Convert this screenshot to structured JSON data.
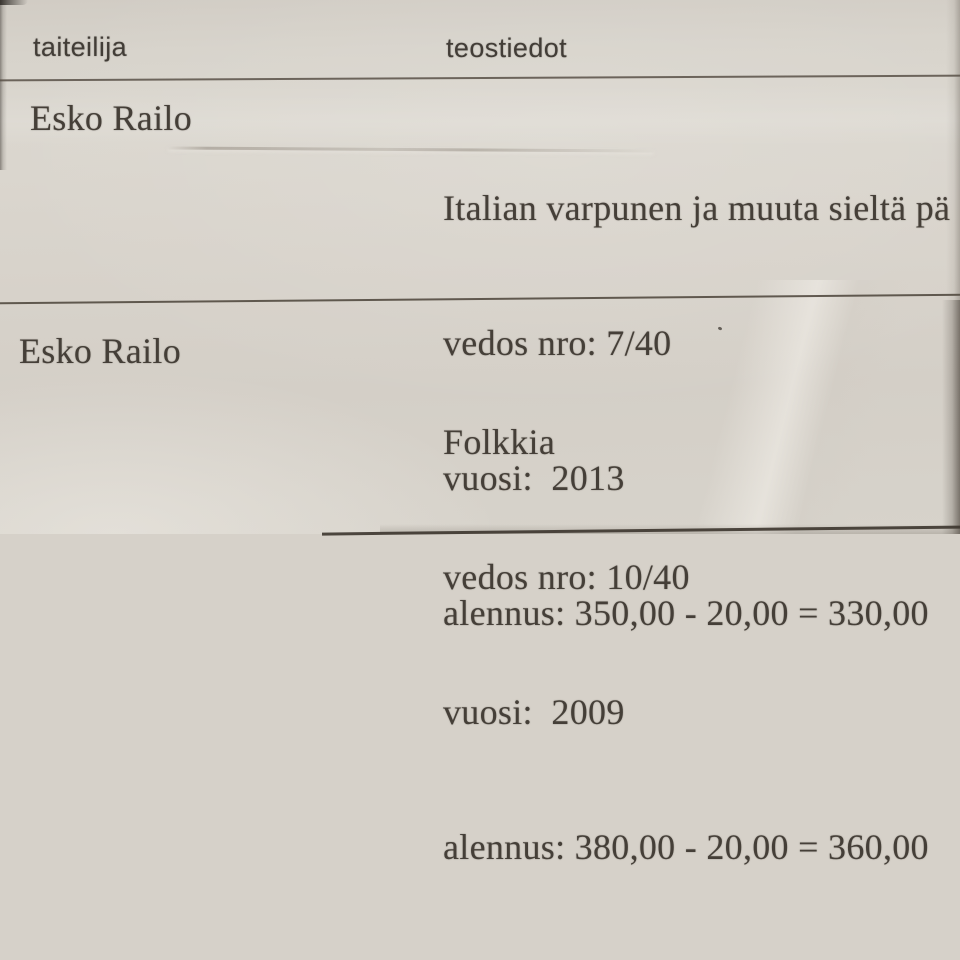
{
  "document": {
    "header": {
      "artist_col": "taiteilija",
      "details_col": "teostiedot"
    },
    "entries": [
      {
        "artist": "Esko Railo",
        "details": [
          "Italian varpunen ja muuta sieltä pä",
          "vedos nro: 7/40",
          "vuosi:  2013",
          "alennus: 350,00 - 20,00 = 330,00"
        ]
      },
      {
        "artist": "Esko Railo",
        "details": [
          "Folkkia",
          "vedos nro: 10/40",
          "vuosi:  2009",
          "alennus: 380,00 - 20,00 = 360,00"
        ]
      }
    ],
    "theme": {
      "paper_color": "#d6d1c9",
      "ink_color": "#453f38",
      "rule_color": "#585046"
    }
  }
}
